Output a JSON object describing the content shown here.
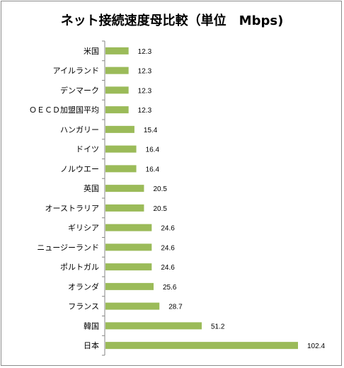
{
  "chart_data": {
    "type": "bar",
    "orientation": "horizontal",
    "title": "ネット接続速度母比較（単位　Mbps)",
    "categories": [
      "米国",
      "アイルランド",
      "デンマーク",
      "ＯＥＣＤ加盟国平均",
      "ハンガリー",
      "ドイツ",
      "ノルウエー",
      "英国",
      "オーストラリア",
      "ギリシア",
      "ニュージーランド",
      "ポルトガル",
      "オランダ",
      "フランス",
      "韓国",
      "日本"
    ],
    "values": [
      12.3,
      12.3,
      12.3,
      12.3,
      15.4,
      16.4,
      16.4,
      20.5,
      20.5,
      24.6,
      24.6,
      24.6,
      25.6,
      28.7,
      51.2,
      102.4
    ],
    "value_labels": [
      "12.3",
      "12.3",
      "12.3",
      "12.3",
      "15.4",
      "16.4",
      "16.4",
      "20.5",
      "20.5",
      "24.6",
      "24.6",
      "24.6",
      "25.6",
      "28.7",
      "51.2",
      "102.4"
    ],
    "xlim": [
      0,
      102.4
    ],
    "grid": false,
    "legend": "none",
    "bar_color": "#9BBB59"
  }
}
